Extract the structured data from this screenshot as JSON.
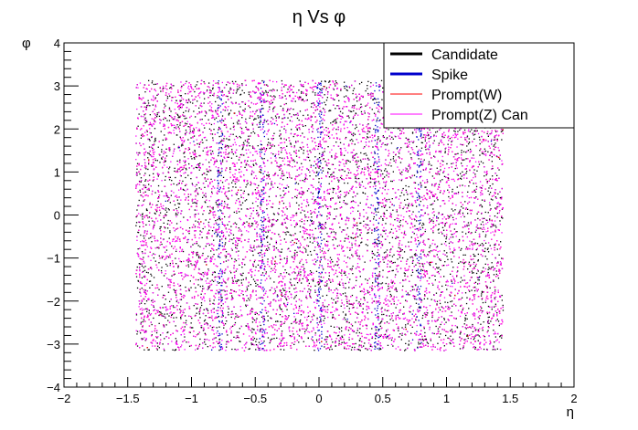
{
  "chart_data": {
    "type": "scatter",
    "title": "η Vs φ",
    "xlabel": "η",
    "ylabel": "φ",
    "xlim": [
      -2,
      2
    ],
    "ylim": [
      -4,
      4
    ],
    "x_ticks": [
      "−2",
      "−1.5",
      "−1",
      "−0.5",
      "0",
      "0.5",
      "1",
      "1.5",
      "2"
    ],
    "y_ticks": [
      "−4",
      "−3",
      "−2",
      "−1",
      "0",
      "1",
      "2",
      "3",
      "4"
    ],
    "grid": false,
    "legend_position": "top-right",
    "series": [
      {
        "name": "Candidate",
        "color": "#000000",
        "eta_range": [
          -1.44,
          1.44
        ],
        "phi_range": [
          -3.14,
          3.14
        ]
      },
      {
        "name": "Spike",
        "color": "#0000cc",
        "eta_range": [
          -1.44,
          1.44
        ],
        "phi_range": [
          -3.14,
          3.14
        ],
        "eta_bands": [
          -0.78,
          -0.45,
          0.0,
          0.45,
          0.78
        ]
      },
      {
        "name": "Prompt(W)",
        "color": "#ff0000",
        "eta_range": [
          -1.44,
          1.44
        ],
        "phi_range": [
          -3.14,
          3.14
        ]
      },
      {
        "name": "Prompt(Z) Can",
        "color": "#ff00ff",
        "eta_range": [
          -1.44,
          1.44
        ],
        "phi_range": [
          -3.14,
          3.14
        ]
      }
    ]
  }
}
